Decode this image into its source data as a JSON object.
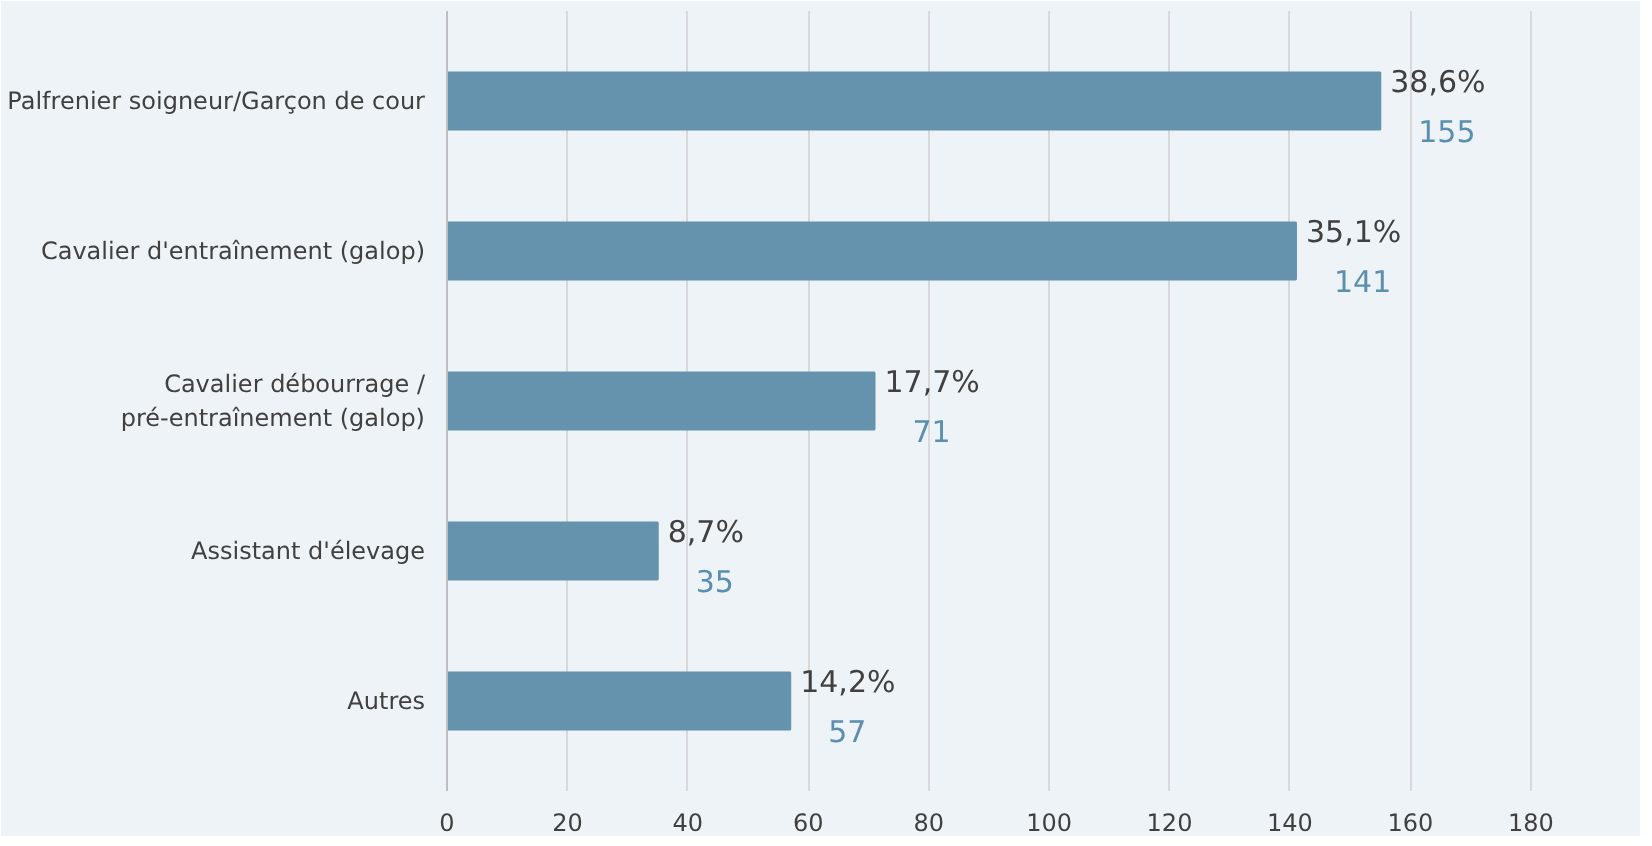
{
  "chart_data": {
    "type": "bar",
    "orientation": "horizontal",
    "categories": [
      "Palfrenier soigneur/Garçon de cour",
      "Cavalier d'entraînement (galop)",
      "Cavalier débourrage /\npré-entraînement (galop)",
      "Assistant d'élevage",
      "Autres"
    ],
    "values": [
      155,
      141,
      71,
      35,
      57
    ],
    "value_labels": [
      "38,6%\n155",
      "35,1%\n141",
      "17,7%\n71",
      "8,7%\n35",
      "14,2%\n57"
    ],
    "color": "#6593ad",
    "xlim": [
      0,
      190
    ],
    "xticks": [
      0,
      20,
      40,
      60,
      80,
      100,
      120,
      140,
      160,
      180
    ],
    "grid": "x"
  }
}
